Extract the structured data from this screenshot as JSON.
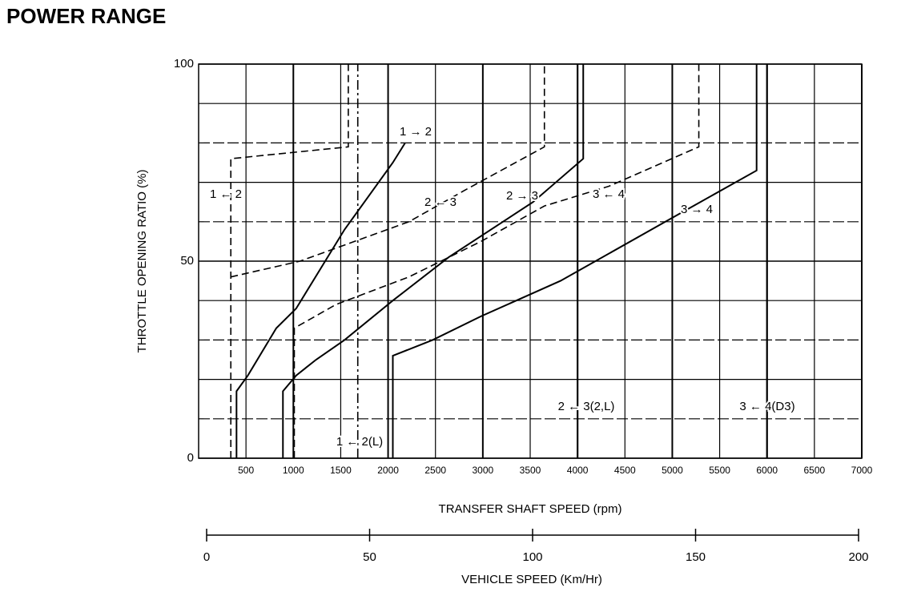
{
  "title": "POWER RANGE",
  "chart_data": {
    "type": "line",
    "y_label": "THROTTLE OPENING RATIO (%)",
    "x_label": "TRANSFER SHAFT SPEED (rpm)",
    "xlim": [
      0,
      7000
    ],
    "xticks": [
      500,
      1000,
      1500,
      2000,
      2500,
      3000,
      3500,
      4000,
      4500,
      5000,
      5500,
      6000,
      6500,
      7000
    ],
    "ylim": [
      0,
      100
    ],
    "yticks": [
      0,
      50,
      100
    ],
    "minor_yticks": [
      10,
      20,
      30,
      40,
      60,
      70,
      80,
      90
    ],
    "grid": true,
    "color": "#000000",
    "series": [
      {
        "name": "1 → 2",
        "style": "solid",
        "x": [
          400,
          400,
          520,
          820,
          1030,
          1540,
          2050,
          2180
        ],
        "values": [
          0,
          17,
          21,
          33,
          38,
          58,
          75,
          80
        ]
      },
      {
        "name": "1 ← 2",
        "style": "dashed",
        "x": [
          340,
          340,
          1580,
          1580
        ],
        "values": [
          0,
          76,
          79,
          100
        ]
      },
      {
        "name": "1 ← 2(L)",
        "style": "dashdot",
        "x": [
          1680,
          1680
        ],
        "values": [
          0,
          100
        ]
      },
      {
        "name": "2 → 3",
        "style": "solid",
        "x": [
          890,
          890,
          1030,
          1240,
          1540,
          2050,
          2640,
          3530,
          4060,
          4060
        ],
        "values": [
          0,
          17,
          21,
          25,
          30,
          40,
          51,
          65,
          76,
          100
        ]
      },
      {
        "name": "2 ← 3",
        "style": "dashed",
        "x": [
          340,
          1070,
          2220,
          2810,
          3650,
          3650
        ],
        "values": [
          46,
          50,
          60,
          68,
          79,
          100
        ]
      },
      {
        "name": "2 ← 3(2,L)",
        "style": "solid",
        "x": [
          4000,
          4000
        ],
        "values": [
          0,
          100
        ]
      },
      {
        "name": "3 → 4",
        "style": "solid",
        "x": [
          2050,
          2050,
          2470,
          2980,
          3820,
          5000,
          5890,
          5890
        ],
        "values": [
          0,
          26,
          30,
          36,
          45,
          61,
          73,
          100
        ]
      },
      {
        "name": "3 ← 4",
        "style": "dashed",
        "x": [
          1010,
          1010,
          1450,
          2220,
          2980,
          3650,
          4330,
          5280,
          5280
        ],
        "values": [
          0,
          33,
          39,
          46,
          55,
          64,
          69,
          79,
          100
        ]
      },
      {
        "name": "3 ← 4(D3)",
        "style": "solid",
        "x": [
          6000,
          6000
        ],
        "values": [
          0,
          100
        ]
      }
    ],
    "x2_label": "VEHICLE SPEED (Km/Hr)",
    "x2lim": [
      0,
      200
    ],
    "x2ticks": [
      0,
      50,
      100,
      150,
      200
    ]
  }
}
